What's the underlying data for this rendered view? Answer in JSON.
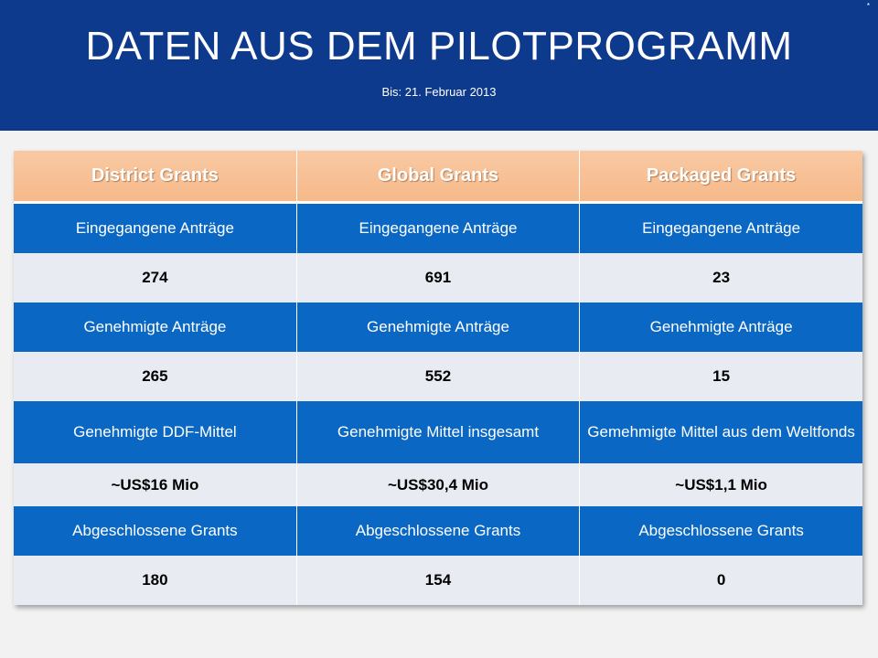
{
  "slide": {
    "title": "DATEN AUS DEM PILOTPROGRAMM",
    "subtitle": "Bis: 21. Februar 2013",
    "corner_mark": "*"
  },
  "table": {
    "headers": [
      "District Grants",
      "Global Grants",
      "Packaged Grants"
    ],
    "rows": [
      [
        "Eingegangene Anträge",
        "Eingegangene Anträge",
        "Eingegangene Anträge"
      ],
      [
        "274",
        "691",
        "23"
      ],
      [
        "Genehmigte Anträge",
        "Genehmigte Anträge",
        "Genehmigte Anträge"
      ],
      [
        "265",
        "552",
        "15"
      ],
      [
        "Genehmigte DDF-Mittel",
        "Genehmigte Mittel insgesamt",
        "Gemehmigte Mittel aus dem Weltfonds"
      ],
      [
        "~US$16 Mio",
        "~US$30,4 Mio",
        "~US$1,1 Mio"
      ],
      [
        "Abgeschlossene Grants",
        "Abgeschlossene Grants",
        "Abgeschlossene Grants"
      ],
      [
        "180",
        "154",
        "0"
      ]
    ]
  },
  "colors": {
    "header_band": "#0d3a8c",
    "table_header": "#f6b98a",
    "label_row": "#0a68c4",
    "value_row": "#e8ebf2"
  }
}
